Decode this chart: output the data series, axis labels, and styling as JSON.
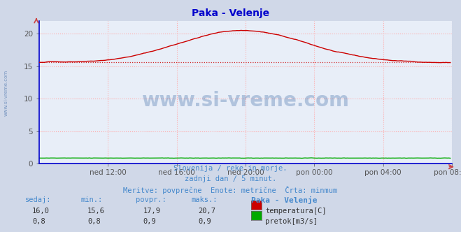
{
  "title": "Paka - Velenje",
  "title_color": "#0000cc",
  "background_color": "#d0d8e8",
  "plot_bg_color": "#e8eef8",
  "grid_color": "#ffaaaa",
  "grid_linestyle": ":",
  "ylim": [
    0,
    22
  ],
  "yticks": [
    0,
    5,
    10,
    15,
    20
  ],
  "x_tick_labels": [
    "ned 12:00",
    "ned 16:00",
    "ned 20:00",
    "pon 00:00",
    "pon 04:00",
    "pon 08:00"
  ],
  "n_points": 288,
  "temp_min": 15.6,
  "temp_max": 20.7,
  "temp_avg": 17.9,
  "temp_current": 16.0,
  "pretok_min": 0.8,
  "pretok_max": 0.9,
  "pretok_avg": 0.9,
  "pretok_current": 0.8,
  "temp_color": "#cc0000",
  "pretok_color": "#00aa00",
  "watermark_text": "www.si-vreme.com",
  "watermark_color": "#3060a0",
  "watermark_alpha": 0.3,
  "subtitle1": "Slovenija / reke in morje.",
  "subtitle2": "zadnji dan / 5 minut.",
  "subtitle3": "Meritve: povprečne  Enote: metrične  Črta: minmum",
  "subtitle_color": "#4488cc",
  "table_header": [
    "sedaj:",
    "min.:",
    "povpr.:",
    "maks.:",
    "Paka - Velenje"
  ],
  "table_row1": [
    "16,0",
    "15,6",
    "17,9",
    "20,7"
  ],
  "table_row2": [
    "0,8",
    "0,8",
    "0,9",
    "0,9"
  ],
  "table_label1": "temperatura[C]",
  "table_label2": "pretok[m3/s]",
  "left_label_color": "#3060a0",
  "spine_color": "#0000cc",
  "tick_color": "#555555",
  "axis_arrow_color": "#cc4444"
}
